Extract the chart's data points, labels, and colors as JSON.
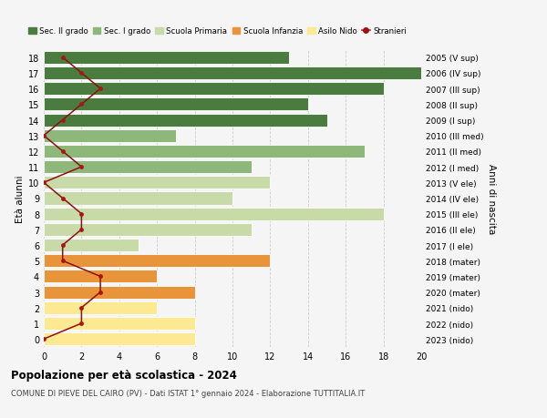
{
  "ages": [
    0,
    1,
    2,
    3,
    4,
    5,
    6,
    7,
    8,
    9,
    10,
    11,
    12,
    13,
    14,
    15,
    16,
    17,
    18
  ],
  "bar_values": [
    8,
    8,
    6,
    8,
    6,
    12,
    5,
    11,
    18,
    10,
    12,
    11,
    17,
    7,
    15,
    14,
    18,
    20,
    13
  ],
  "bar_colors": [
    "#fde992",
    "#fde992",
    "#fde992",
    "#e8943a",
    "#e8943a",
    "#e8943a",
    "#c8daa7",
    "#c8daa7",
    "#c8daa7",
    "#c8daa7",
    "#c8daa7",
    "#8db87a",
    "#8db87a",
    "#8db87a",
    "#4a7c40",
    "#4a7c40",
    "#4a7c40",
    "#4a7c40",
    "#4a7c40"
  ],
  "stranieri_values": [
    0,
    2,
    2,
    3,
    3,
    1,
    1,
    2,
    2,
    1,
    0,
    2,
    1,
    0,
    1,
    2,
    3,
    2,
    1
  ],
  "right_labels": [
    "2023 (nido)",
    "2022 (nido)",
    "2021 (nido)",
    "2020 (mater)",
    "2019 (mater)",
    "2018 (mater)",
    "2017 (I ele)",
    "2016 (II ele)",
    "2015 (III ele)",
    "2014 (IV ele)",
    "2013 (V ele)",
    "2012 (I med)",
    "2011 (II med)",
    "2010 (III med)",
    "2009 (I sup)",
    "2008 (II sup)",
    "2007 (III sup)",
    "2006 (IV sup)",
    "2005 (V sup)"
  ],
  "legend_labels": [
    "Sec. II grado",
    "Sec. I grado",
    "Scuola Primaria",
    "Scuola Infanzia",
    "Asilo Nido",
    "Stranieri"
  ],
  "legend_colors": [
    "#4a7c40",
    "#8db87a",
    "#c8daa7",
    "#e8943a",
    "#fde992",
    "#a01010"
  ],
  "ylabel_left": "Età alunni",
  "ylabel_right": "Anni di nascita",
  "title": "Popolazione per età scolastica - 2024",
  "subtitle": "COMUNE DI PIEVE DEL CAIRO (PV) - Dati ISTAT 1° gennaio 2024 - Elaborazione TUTTITALIA.IT",
  "xlim": [
    0,
    20
  ],
  "background_color": "#f5f5f5",
  "grid_color": "#cccccc"
}
